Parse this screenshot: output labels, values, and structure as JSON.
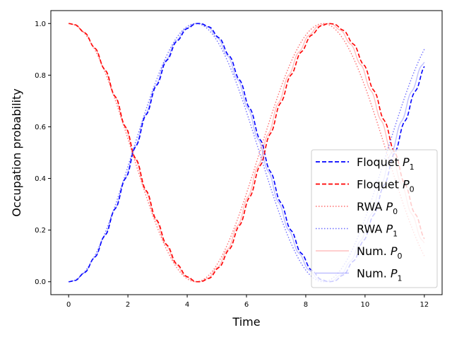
{
  "chart_data": {
    "type": "line",
    "title": "",
    "xlabel": "Time",
    "ylabel": "Occupation probability",
    "xlim": [
      -0.6,
      12.6
    ],
    "ylim": [
      -0.05,
      1.05
    ],
    "xticks": [
      0,
      2,
      4,
      6,
      8,
      10,
      12
    ],
    "yticks": [
      0.0,
      0.2,
      0.4,
      0.6,
      0.8,
      1.0
    ],
    "xtick_labels": [
      "0",
      "2",
      "4",
      "6",
      "8",
      "10",
      "12"
    ],
    "ytick_labels": [
      "0.0",
      "0.2",
      "0.4",
      "0.6",
      "0.8",
      "1.0"
    ],
    "grid": false,
    "legend_position": "lower-right",
    "model": {
      "omega": 0.714,
      "ripple_amplitude": 0.012,
      "ripple_frequency": 18,
      "t_start": 0,
      "t_end": 12,
      "samples": 240
    },
    "series": [
      {
        "key": "floquet_p1",
        "name": "Floquet ",
        "sub": "1",
        "color": "#0000ff",
        "style": "dashed",
        "width": 1.6,
        "alpha": 1.0,
        "base": "p1",
        "ripple": 1,
        "phase_shift": 0
      },
      {
        "key": "floquet_p0",
        "name": "Floquet ",
        "sub": "0",
        "color": "#ff0000",
        "style": "dashed",
        "width": 1.6,
        "alpha": 1.0,
        "base": "p0",
        "ripple": 1,
        "phase_shift": 0
      },
      {
        "key": "rwa_p0",
        "name": "RWA ",
        "sub": "0",
        "color": "#ff3030",
        "style": "dotted",
        "width": 1.4,
        "alpha": 0.7,
        "base": "p0",
        "ripple": 0,
        "phase_shift": 0.025
      },
      {
        "key": "rwa_p1",
        "name": "RWA ",
        "sub": "1",
        "color": "#3030ff",
        "style": "dotted",
        "width": 1.4,
        "alpha": 0.7,
        "base": "p1",
        "ripple": 0,
        "phase_shift": 0.025
      },
      {
        "key": "num_p0",
        "name": "Num. ",
        "sub": "0",
        "color": "#ff0000",
        "style": "solid",
        "width": 1.4,
        "alpha": 0.25,
        "base": "p0",
        "ripple": 1,
        "phase_shift": 0.01
      },
      {
        "key": "num_p1",
        "name": "Num. ",
        "sub": "1",
        "color": "#0000ff",
        "style": "solid",
        "width": 1.4,
        "alpha": 0.25,
        "base": "p1",
        "ripple": 1,
        "phase_shift": 0.01
      }
    ]
  }
}
